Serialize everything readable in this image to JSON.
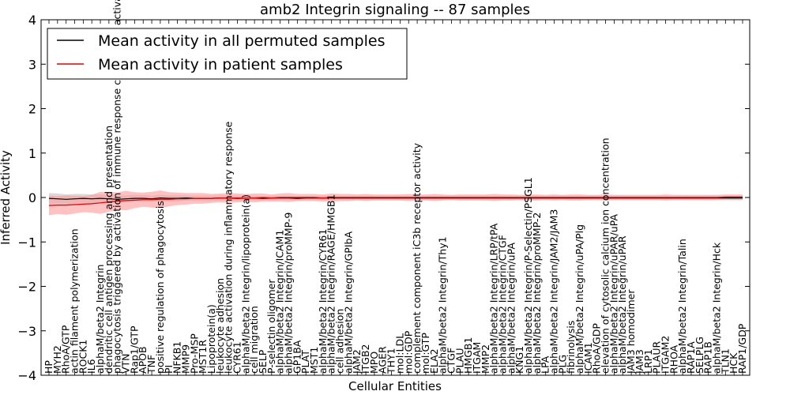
{
  "chart_data": {
    "type": "line",
    "title": "amb2 Integrin signaling -- 87 samples",
    "xlabel": "Cellular Entities",
    "ylabel": "Inferred Activity",
    "ylim": [
      -4,
      4
    ],
    "yticks": [
      "4",
      "3",
      "2",
      "1",
      "0",
      "−1",
      "−2",
      "−3",
      "−4"
    ],
    "legend_position": "top-left",
    "grid": false,
    "categories": [
      "HP",
      "MYH2",
      "RhoA/GTP",
      "actin filament polymerization",
      "ROCK1",
      "IL6",
      "alphaM/beta2 Integrin",
      "dendritic cell antigen processing and presentation",
      "phagocytosis triggered by activation of immune response cell surface activating receptor",
      "VTN",
      "Rap1/GTP",
      "APOB",
      "TNF",
      "positive regulation of phagocytosis",
      "PI",
      "NFKB1",
      "MMP9",
      "Pro-MSP",
      "MST1R",
      "Lipoprotein(a)",
      "leukocyte adhesion",
      "leukocyte activation during inflammatory response",
      "CYR61",
      "alphaM/beta2 Integrin/lipoprotein(a)",
      "cell migration",
      "SELP",
      "P-selectin oligomer",
      "alphaM/beta2 Integrin/ICAM1",
      "alphaM/beta2 Integrin/proMMP-9",
      "GP1BA",
      "PLAT",
      "MST1",
      "alphaM/beta2 Integrin/CYR61",
      "alphaM/beta2 Integrin/RAGE/HMGB1",
      "cell adhesion",
      "alphaM/beta2 Integrin/GPIbA",
      "JAM2",
      "ITGB2",
      "MPO",
      "AGER",
      "THY1",
      "mol:LDL",
      "mol:GDP",
      "complement component iC3b receptor activity",
      "mol:GTP",
      "ELA2",
      "alphaM/beta2 Integrin/Thy1",
      "CTGF",
      "PLAU",
      "HMGB1",
      "ITGAM",
      "MMP2",
      "alphaM/beta2 Integrin/LRP/tPA",
      "alphaM/beta2 Integrin/CTGF",
      "alphaM/beta2 Integrin/uPA",
      "KNG1",
      "alphaM/beta2 Integrin/P-Selectin/PSGL1",
      "alphaM/beta2 Integrin/proMMP-2",
      "LPA",
      "alphaM/beta2 Integrin/JAM2/JAM3",
      "PLG",
      "fibrinolysis",
      "alphaM/beta2 Integrin/uPA/Plg",
      "ICAM1",
      "RhoA/GDP",
      "elevation of cytosolic calcium ion concentration",
      "alphaM/beta2 Integrin/uPAR/uPA",
      "alphaM/beta2 Integrin/uPAR",
      "JAM3 homodimer",
      "JAM3",
      "LRP1",
      "PLAUR",
      "ITGAM2",
      "RHOA",
      "alphaM/beta2 Integrin/Talin",
      "RAP1A",
      "SELPLG",
      "RAP1B",
      "alphaM/beta2 Integrin/Hck",
      "TLN1",
      "HCK",
      "RAP1/GDP"
    ],
    "series": [
      {
        "name": "Mean activity in all permuted samples",
        "color": "#000000",
        "band_color": "#bbbbbb",
        "values": [
          -0.02,
          -0.03,
          -0.04,
          -0.03,
          -0.02,
          -0.03,
          -0.02,
          -0.03,
          -0.04,
          -0.03,
          -0.02,
          -0.02,
          -0.03,
          -0.01,
          -0.02,
          -0.02,
          -0.01,
          -0.02,
          -0.02,
          -0.02,
          -0.01,
          -0.01,
          -0.02,
          -0.01,
          -0.01,
          -0.02,
          -0.01,
          -0.01,
          -0.01,
          -0.02,
          -0.01,
          -0.01,
          -0.01,
          -0.01,
          -0.01,
          -0.01,
          -0.01,
          -0.01,
          -0.01,
          -0.01,
          -0.01,
          -0.01,
          -0.01,
          -0.01,
          -0.01,
          -0.01,
          -0.01,
          -0.01,
          -0.01,
          -0.01,
          -0.01,
          -0.01,
          -0.01,
          -0.01,
          -0.01,
          -0.01,
          -0.01,
          -0.01,
          -0.01,
          -0.01,
          -0.01,
          -0.01,
          -0.01,
          -0.01,
          -0.01,
          -0.01,
          -0.01,
          -0.01,
          -0.01,
          -0.01,
          -0.01,
          -0.01,
          -0.01,
          -0.01,
          -0.01,
          -0.01,
          -0.01,
          -0.01,
          -0.01,
          -0.01,
          -0.01,
          -0.01
        ],
        "spread": [
          0.12,
          0.12,
          0.11,
          0.11,
          0.1,
          0.1,
          0.09,
          0.09,
          0.09,
          0.08,
          0.08,
          0.08,
          0.07,
          0.07,
          0.07,
          0.07,
          0.06,
          0.06,
          0.06,
          0.06,
          0.06,
          0.06,
          0.06,
          0.05,
          0.05,
          0.05,
          0.05,
          0.05,
          0.05,
          0.05,
          0.05,
          0.05,
          0.05,
          0.05,
          0.05,
          0.05,
          0.05,
          0.05,
          0.05,
          0.05,
          0.05,
          0.05,
          0.05,
          0.05,
          0.05,
          0.05,
          0.05,
          0.05,
          0.05,
          0.05,
          0.05,
          0.05,
          0.05,
          0.05,
          0.05,
          0.05,
          0.05,
          0.05,
          0.05,
          0.05,
          0.05,
          0.05,
          0.05,
          0.05,
          0.05,
          0.05,
          0.05,
          0.05,
          0.05,
          0.05,
          0.05,
          0.05,
          0.05,
          0.05,
          0.05,
          0.05,
          0.05,
          0.05,
          0.05,
          0.05,
          0.05,
          0.05
        ]
      },
      {
        "name": "Mean activity in patient samples",
        "color": "#dd0000",
        "band_color": "#ff9999",
        "values": [
          -0.18,
          -0.17,
          -0.17,
          -0.16,
          -0.15,
          -0.14,
          -0.12,
          -0.1,
          -0.08,
          -0.07,
          -0.06,
          -0.05,
          -0.05,
          -0.04,
          -0.04,
          -0.03,
          -0.03,
          -0.02,
          -0.02,
          -0.02,
          -0.01,
          -0.01,
          -0.01,
          -0.01,
          -0.01,
          0,
          -0.01,
          0,
          0,
          0,
          0,
          0,
          -0.01,
          0,
          0,
          0,
          0,
          0,
          0,
          0,
          0,
          0,
          0,
          0,
          0,
          0,
          0,
          0,
          0,
          0,
          0,
          0,
          0,
          0,
          0,
          0,
          0,
          0,
          0,
          0,
          0,
          0,
          0,
          0,
          0,
          0,
          0,
          0,
          0,
          0,
          0,
          0,
          0,
          0,
          0,
          0,
          0,
          0,
          0,
          0.01,
          0.01,
          0.01
        ],
        "spread": [
          0.22,
          0.2,
          0.22,
          0.2,
          0.18,
          0.2,
          0.25,
          0.22,
          0.2,
          0.22,
          0.18,
          0.16,
          0.18,
          0.2,
          0.16,
          0.14,
          0.13,
          0.12,
          0.12,
          0.1,
          0.1,
          0.11,
          0.1,
          0.09,
          0.1,
          0.09,
          0.08,
          0.09,
          0.1,
          0.08,
          0.08,
          0.08,
          0.08,
          0.09,
          0.08,
          0.08,
          0.07,
          0.08,
          0.07,
          0.07,
          0.07,
          0.07,
          0.08,
          0.07,
          0.07,
          0.08,
          0.07,
          0.06,
          0.07,
          0.07,
          0.07,
          0.07,
          0.08,
          0.07,
          0.07,
          0.06,
          0.07,
          0.07,
          0.06,
          0.07,
          0.06,
          0.07,
          0.07,
          0.06,
          0.06,
          0.07,
          0.06,
          0.06,
          0.06,
          0.06,
          0.06,
          0.06,
          0.07,
          0.06,
          0.06,
          0.06,
          0.06,
          0.06,
          0.06,
          0.06,
          0.06,
          0.06
        ]
      }
    ]
  }
}
